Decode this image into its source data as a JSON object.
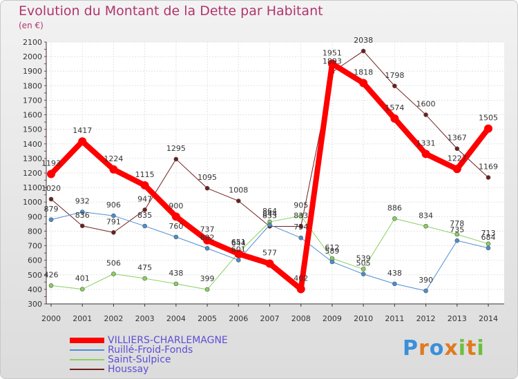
{
  "title": "Evolution du Montant de la Dette par Habitant",
  "unit_label": "(en €)",
  "logo": {
    "text": "Proxiti",
    "colors": [
      "#3a8fd9",
      "#e07a1e",
      "#3a8fd9",
      "#e07a1e",
      "#6cbf3e",
      "#e07a1e",
      "#6cbf3e"
    ]
  },
  "chart_data": {
    "type": "line",
    "title": "Evolution du Montant de la Dette par Habitant",
    "ylabel": "(en €)",
    "xlabel": "",
    "x": [
      "2000",
      "2001",
      "2002",
      "2003",
      "2004",
      "2005",
      "2006",
      "2007",
      "2008",
      "2009",
      "2010",
      "2011",
      "2012",
      "2013",
      "2014"
    ],
    "ylim": [
      300,
      2100
    ],
    "yticks": [
      300,
      400,
      500,
      600,
      700,
      800,
      900,
      1000,
      1100,
      1200,
      1300,
      1400,
      1500,
      1600,
      1700,
      1800,
      1900,
      2000,
      2100
    ],
    "grid": true,
    "legend_position": "bottom-left",
    "series": [
      {
        "name": "VILLIERS-CHARLEMAGNE",
        "color": "#ff0000",
        "values": [
          1193,
          1417,
          1224,
          1115,
          900,
          737,
          644,
          577,
          402,
          1951,
          1818,
          1574,
          1331,
          1227,
          1505
        ]
      },
      {
        "name": "Ruillé-Froid-Fonds",
        "color": "#4a8ed0",
        "values": [
          879,
          932,
          906,
          835,
          760,
          682,
          601,
          844,
          754,
          589,
          505,
          438,
          390,
          735,
          684
        ]
      },
      {
        "name": "Saint-Sulpice",
        "color": "#88d060",
        "values": [
          426,
          401,
          506,
          475,
          438,
          399,
          651,
          864,
          905,
          612,
          539,
          886,
          834,
          778,
          713
        ]
      },
      {
        "name": "Houssay",
        "color": "#6e1e1e",
        "values": [
          1020,
          836,
          791,
          947,
          1295,
          1095,
          1008,
          833,
          833,
          1893,
          2038,
          1798,
          1600,
          1367,
          1169
        ]
      }
    ]
  }
}
